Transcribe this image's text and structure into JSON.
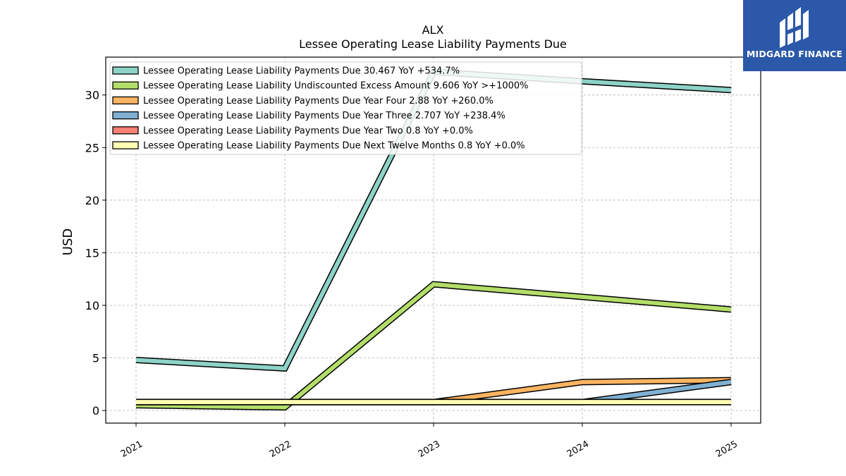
{
  "header": {
    "title": "ALX",
    "subtitle": "Lessee Operating Lease Liability Payments Due"
  },
  "logo": {
    "text": "MIDGARD FINANCE",
    "background": "#2b58a8"
  },
  "chart_data": {
    "type": "line",
    "title": "ALX",
    "subtitle": "Lessee Operating Lease Liability Payments Due",
    "xlabel": "",
    "ylabel": "USD",
    "categories": [
      "2021",
      "2022",
      "2023",
      "2024",
      "2025"
    ],
    "yticks": [
      0,
      5,
      10,
      15,
      20,
      25,
      30
    ],
    "ylim": [
      -1.2,
      33.6
    ],
    "grid": true,
    "legend_position": "top-left",
    "series": [
      {
        "name": "Lessee Operating Lease Liability Payments Due",
        "legend": "Lessee Operating Lease Liability Payments Due  30.467 YoY +534.7%",
        "color": "#8dd3c7",
        "values": [
          4.8,
          4.0,
          32.2,
          31.3,
          30.467
        ]
      },
      {
        "name": "Lessee Operating Lease Liability Undiscounted Excess Amount",
        "legend": "Lessee Operating Lease Liability Undiscounted Excess Amount  9.606 YoY >+1000%",
        "color": "#b3de69",
        "values": [
          0.5,
          0.3,
          12.0,
          10.8,
          9.606
        ]
      },
      {
        "name": "Lessee Operating Lease Liability Payments Due Year Four",
        "legend": "Lessee Operating Lease Liability Payments Due Year Four  2.88 YoY +260.0%",
        "color": "#fdb462",
        "values": [
          0.8,
          0.8,
          0.8,
          2.7,
          2.88
        ]
      },
      {
        "name": "Lessee Operating Lease Liability Payments Due Year Three",
        "legend": "Lessee Operating Lease Liability Payments Due Year Three  2.707 YoY +238.4%",
        "color": "#80b1d3",
        "values": [
          0.8,
          0.8,
          0.8,
          0.8,
          2.707
        ]
      },
      {
        "name": "Lessee Operating Lease Liability Payments Due Year Two",
        "legend": "Lessee Operating Lease Liability Payments Due Year Two  0.8 YoY +0.0%",
        "color": "#fb8072",
        "values": [
          0.8,
          0.8,
          0.8,
          0.8,
          0.8
        ]
      },
      {
        "name": "Lessee Operating Lease Liability Payments Due Next Twelve Months",
        "legend": "Lessee Operating Lease Liability Payments Due Next Twelve Months  0.8 YoY +0.0%",
        "color": "#ffffb3",
        "values": [
          0.8,
          0.8,
          0.8,
          0.8,
          0.8
        ]
      }
    ]
  }
}
